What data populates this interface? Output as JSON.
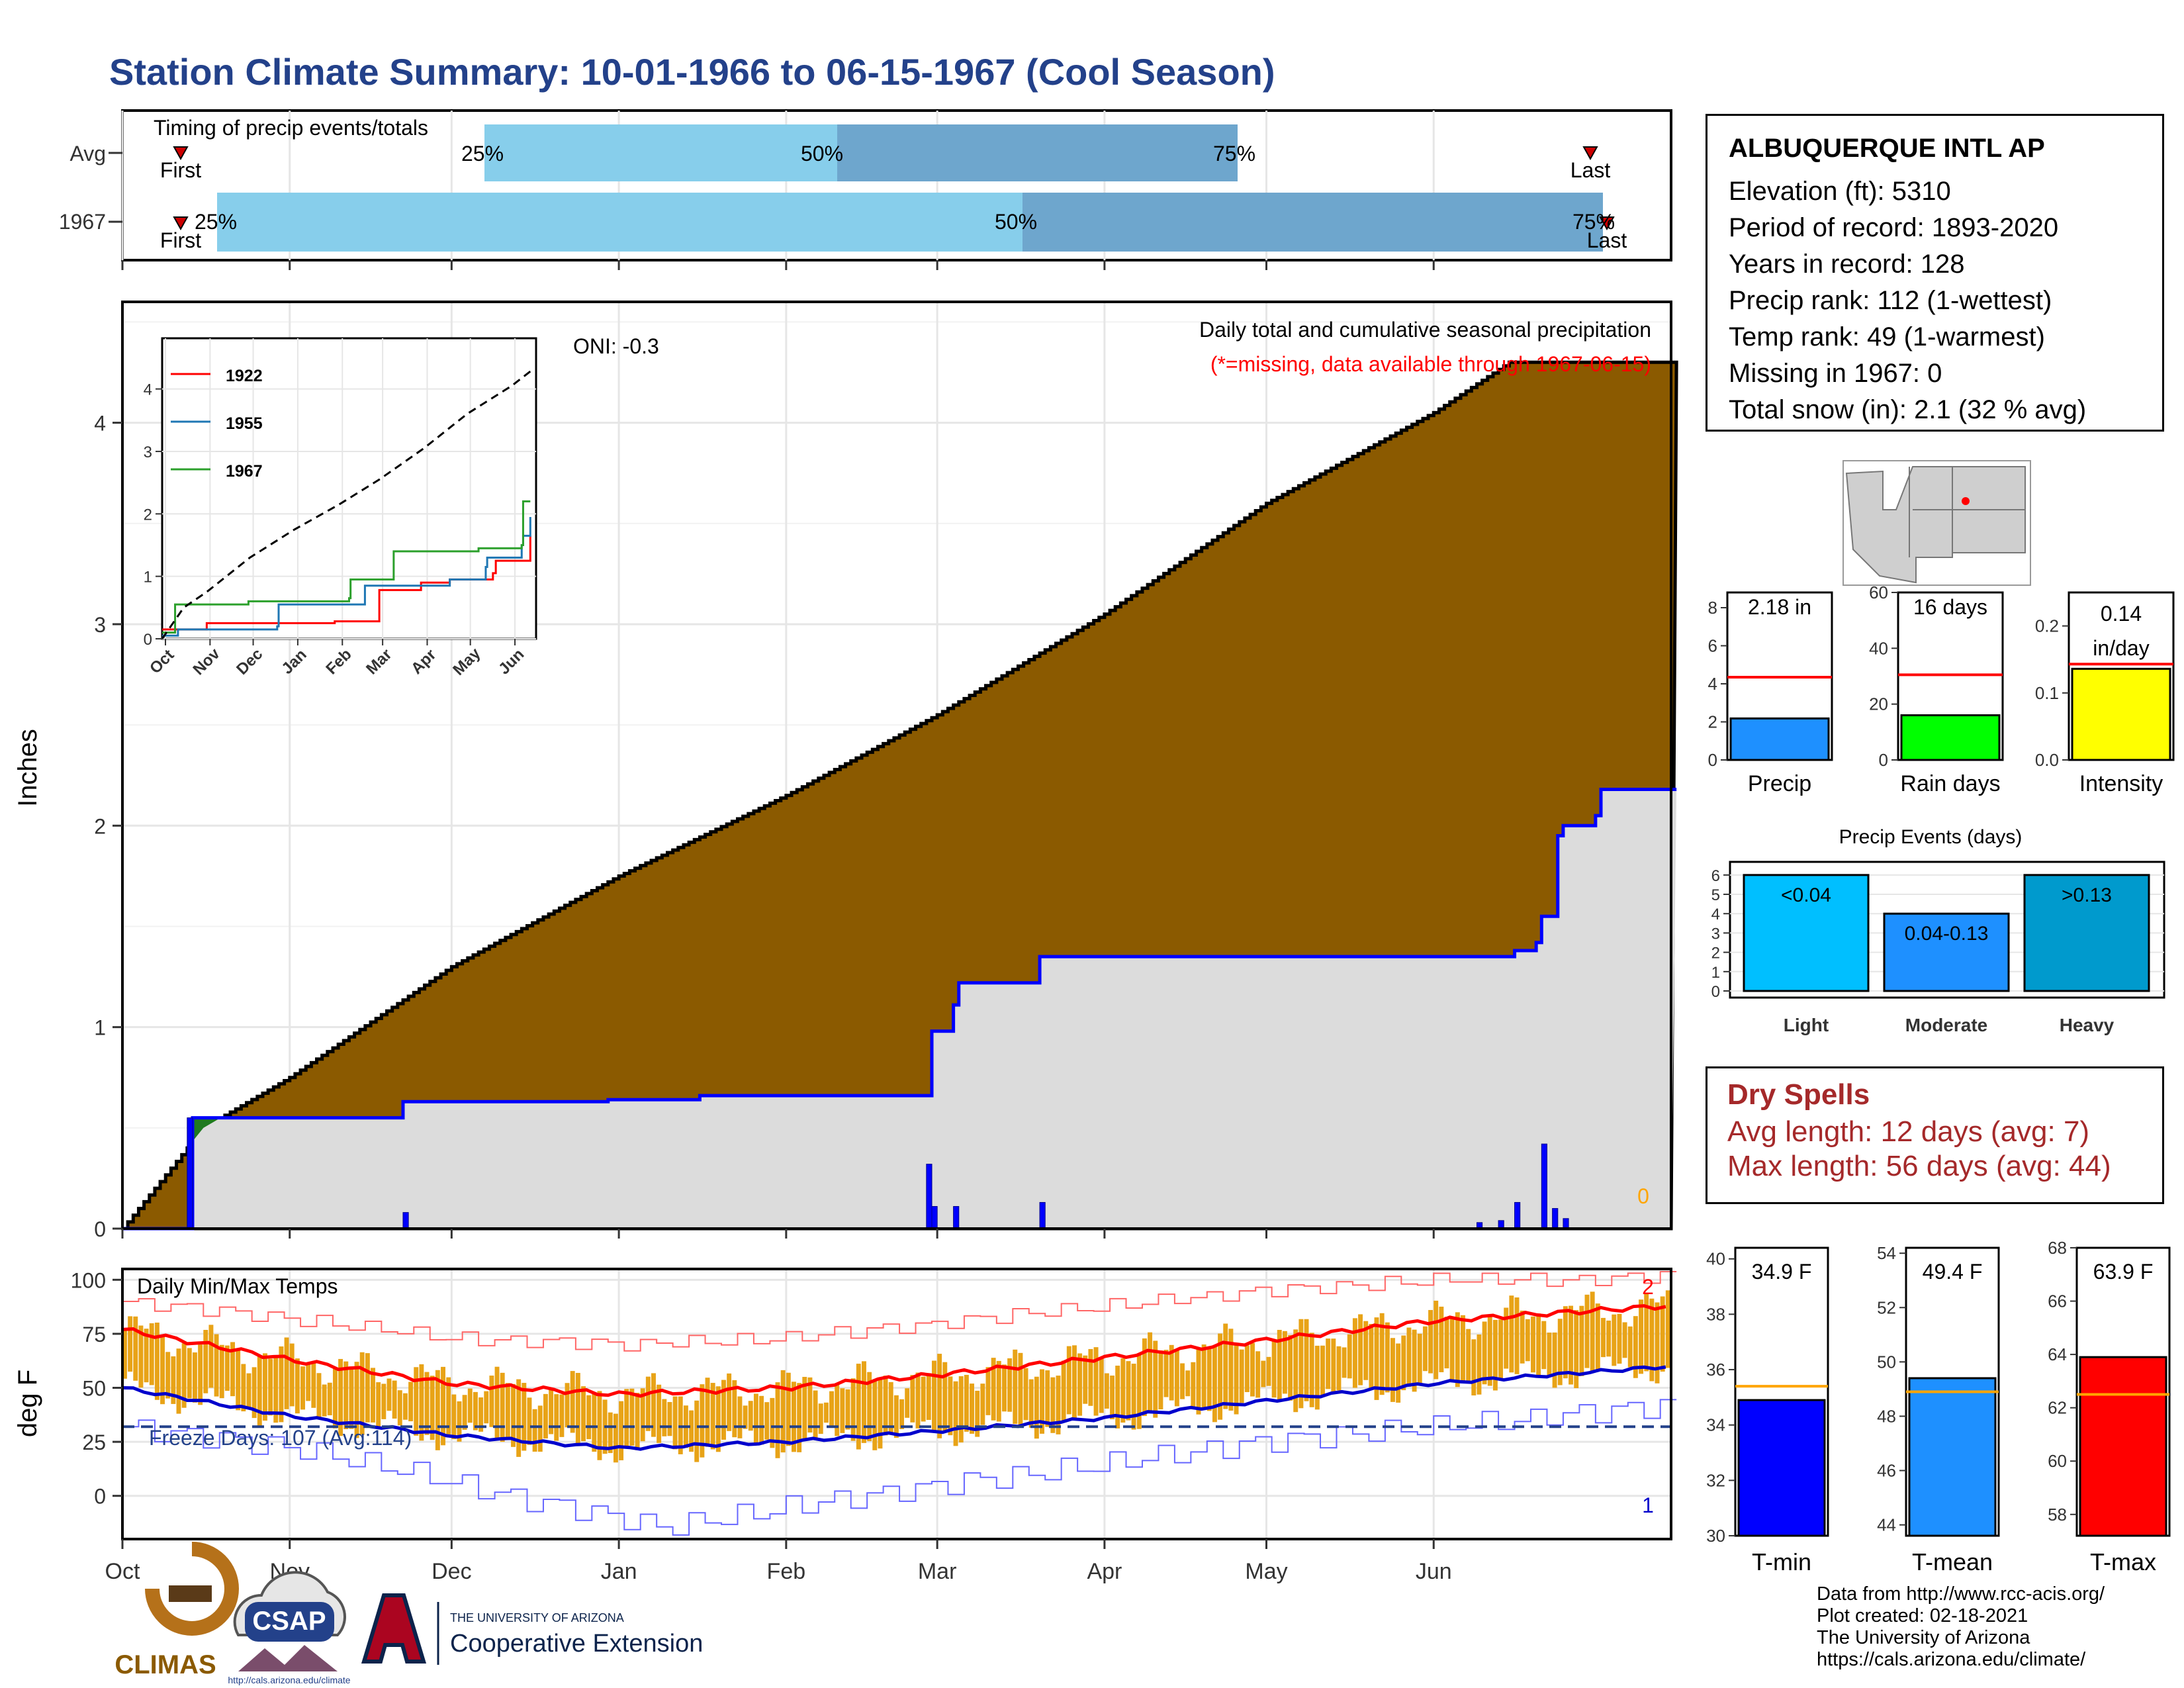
{
  "title": "Station Climate Summary: 10-01-1966 to 06-15-1967 (Cool Season)",
  "station": {
    "name": "ALBUQUERQUE INTL AP",
    "lines": [
      "Elevation (ft): 5310",
      "Period of record: 1893-2020",
      "Years in record: 128",
      "Precip rank: 112 (1-wettest)",
      "Temp rank: 49 (1-warmest)",
      "Missing in 1967: 0",
      "Total snow (in): 2.1 (32 % avg)"
    ]
  },
  "timing": {
    "label": "Timing of precip events/totals",
    "rows": [
      "Avg",
      "1967"
    ],
    "first_label": "First",
    "last_label": "Last",
    "pct_labels": [
      "25%",
      "50%",
      "75%"
    ]
  },
  "main_chart": {
    "ylabel": "Inches",
    "oni": "ONI: -0.3",
    "caption": "Daily total and cumulative seasonal precipitation",
    "caption_note": "(*=missing, data available through 1967-06-15)",
    "count_label": "0",
    "yticks": [
      "0",
      "1",
      "2",
      "3",
      "4"
    ],
    "months": [
      "Oct",
      "Nov",
      "Dec",
      "Jan",
      "Feb",
      "Mar",
      "Apr",
      "May",
      "Jun"
    ]
  },
  "inset": {
    "legend": [
      "1922",
      "1955",
      "1967"
    ],
    "yticks": [
      "0",
      "1",
      "2",
      "3",
      "4"
    ],
    "months": [
      "Oct",
      "Nov",
      "Dec",
      "Jan",
      "Feb",
      "Mar",
      "Apr",
      "May",
      "Jun"
    ]
  },
  "temp_chart": {
    "ylabel": "deg F",
    "title": "Daily Min/Max Temps",
    "freeze": "Freeze Days: 107 (Avg:114)",
    "record_high_count": "2",
    "record_low_count": "1",
    "yticks": [
      "0",
      "25",
      "50",
      "75",
      "100"
    ]
  },
  "precip_bars": {
    "precip": {
      "label": "Precip",
      "value_text": "2.18 in",
      "value": 2.18,
      "avg": 4.35,
      "yticks": [
        "0",
        "2",
        "4",
        "6",
        "8"
      ],
      "ymax": 8.8
    },
    "raindays": {
      "label": "Rain days",
      "value_text": "16 days",
      "value": 16,
      "avg": 30.5,
      "yticks": [
        "0",
        "20",
        "40",
        "60"
      ],
      "ymax": 60
    },
    "intensity": {
      "label": "Intensity",
      "value_text": "0.14",
      "value_text2": "in/day",
      "value": 0.136,
      "avg": 0.143,
      "yticks": [
        "0.0",
        "0.1",
        "0.2"
      ],
      "ymax": 0.25
    }
  },
  "events": {
    "title": "Precip Events (days)",
    "yticks": [
      "0",
      "1",
      "2",
      "3",
      "4",
      "5",
      "6"
    ],
    "bars": [
      {
        "name": "Light",
        "range": "<0.04",
        "value": 6
      },
      {
        "name": "Moderate",
        "range": "0.04-0.13",
        "value": 4
      },
      {
        "name": "Heavy",
        "range": ">0.13",
        "value": 6
      }
    ]
  },
  "dry_spells": {
    "title": "Dry Spells",
    "avg": "Avg length: 12 days (avg: 7)",
    "max": "Max length: 56 days (avg: 44)"
  },
  "temp_bars": {
    "tmin": {
      "label": "T-min",
      "value_text": "34.9 F",
      "value": 34.9,
      "avg": 35.4,
      "ymin": 30,
      "ymax": 40.4,
      "yticks": [
        "30",
        "32",
        "34",
        "36",
        "38",
        "40"
      ]
    },
    "tmean": {
      "label": "T-mean",
      "value_text": "49.4 F",
      "value": 49.4,
      "avg": 48.9,
      "ymin": 43.6,
      "ymax": 54.2,
      "yticks": [
        "44",
        "46",
        "48",
        "50",
        "52",
        "54"
      ]
    },
    "tmax": {
      "label": "T-max",
      "value_text": "63.9 F",
      "value": 63.9,
      "avg": 62.5,
      "ymin": 57.2,
      "ymax": 68,
      "yticks": [
        "58",
        "60",
        "62",
        "64",
        "66",
        "68"
      ]
    }
  },
  "logos": {
    "climas": "CLIMAS",
    "csap": "CSAP",
    "csap_url": "http://cals.arizona.edu/climate",
    "ua_top": "THE UNIVERSITY OF ARIZONA",
    "ua_bottom": "Cooperative Extension"
  },
  "source": [
    "Data from http://www.rcc-acis.org/",
    "Plot created: 02-18-2021",
    "The University of Arizona",
    "https://cals.arizona.edu/climate/"
  ],
  "colors": {
    "title": "#23418a",
    "avg_cum_fill": "#8b5a00",
    "obs_line": "#0000ff",
    "surplus_fill": "#1f7a1f",
    "daily_bar": "#0000ff",
    "temp_bar": "#e8a317",
    "tmax_avg": "#ff0000",
    "tmin_avg": "#0000cc",
    "timing_light": "#87ceeb",
    "timing_dark": "#6ea6cd",
    "event_light": "#00bfff",
    "event_mod": "#1e90ff",
    "event_heavy": "#009acd"
  },
  "chart_data": [
    {
      "type": "line",
      "title": "Daily total and cumulative seasonal precipitation",
      "ylabel": "Inches",
      "ylim": [
        0,
        4.6
      ],
      "x_months": [
        "Oct",
        "Nov",
        "Dec",
        "Jan",
        "Feb",
        "Mar",
        "Apr",
        "May",
        "Jun"
      ],
      "series": [
        {
          "name": "Average cumulative",
          "x_day": [
            0,
            15,
            31,
            61,
            92,
            123,
            151,
            182,
            212,
            243,
            257
          ],
          "values": [
            0,
            0.5,
            0.75,
            1.3,
            1.75,
            2.15,
            2.55,
            3.05,
            3.6,
            4.05,
            4.3
          ]
        },
        {
          "name": "1967 cumulative",
          "x_day": [
            0,
            12,
            13,
            31,
            51,
            52,
            59,
            90,
            107,
            149,
            150,
            154,
            155,
            169,
            170,
            258,
            262,
            263,
            266,
            267,
            273,
            274,
            287
          ],
          "values": [
            0,
            0,
            0.55,
            0.55,
            0.55,
            0.63,
            0.63,
            0.64,
            0.66,
            0.66,
            0.98,
            1.11,
            1.22,
            1.22,
            1.35,
            1.38,
            1.42,
            1.55,
            1.95,
            2.0,
            2.05,
            2.18,
            2.18
          ]
        }
      ],
      "daily_precip": {
        "x_day": [
          12,
          52,
          149,
          150,
          154,
          170,
          251,
          255,
          258,
          263,
          265,
          267
        ],
        "values": [
          0.55,
          0.08,
          0.32,
          0.11,
          0.11,
          0.13,
          0.03,
          0.04,
          0.13,
          0.42,
          0.1,
          0.05
        ]
      }
    },
    {
      "type": "line",
      "title": "",
      "ylim": [
        0,
        4.6
      ],
      "series": [
        {
          "name": "1922",
          "x_day": [
            0,
            30,
            31,
            120,
            150,
            151,
            180,
            200,
            230,
            232,
            255,
            256
          ],
          "values": [
            0.15,
            0.15,
            0.25,
            0.28,
            0.28,
            0.78,
            0.9,
            0.95,
            1.05,
            1.25,
            1.25,
            1.65
          ]
        },
        {
          "name": "1955",
          "x_day": [
            0,
            10,
            11,
            80,
            81,
            140,
            141,
            200,
            225,
            226,
            250,
            251,
            256
          ],
          "values": [
            0.05,
            0.05,
            0.15,
            0.2,
            0.55,
            0.55,
            0.85,
            0.95,
            1.15,
            1.3,
            1.5,
            1.65,
            1.95
          ]
        },
        {
          "name": "1967",
          "x_day": [
            0,
            8,
            9,
            60,
            130,
            131,
            160,
            161,
            220,
            250,
            251,
            256
          ],
          "values": [
            0.1,
            0.1,
            0.55,
            0.6,
            0.65,
            0.95,
            0.95,
            1.4,
            1.45,
            1.5,
            2.2,
            2.2
          ]
        },
        {
          "name": "Average",
          "x_day": [
            0,
            15,
            31,
            61,
            92,
            123,
            151,
            182,
            212,
            243,
            257
          ],
          "values": [
            0,
            0.5,
            0.75,
            1.3,
            1.75,
            2.15,
            2.55,
            3.05,
            3.6,
            4.05,
            4.3
          ]
        }
      ]
    },
    {
      "type": "line",
      "title": "Daily Min/Max Temps",
      "ylabel": "deg F",
      "ylim": [
        -20,
        105
      ],
      "series": [
        {
          "name": "avg max",
          "x_day": [
            0,
            31,
            61,
            92,
            123,
            151,
            182,
            212,
            243,
            287
          ],
          "values": [
            77,
            63,
            52,
            47,
            50,
            56,
            64,
            72,
            81,
            88
          ]
        },
        {
          "name": "avg min",
          "x_day": [
            0,
            31,
            61,
            92,
            123,
            151,
            182,
            212,
            243,
            287
          ],
          "values": [
            50,
            37,
            28,
            22,
            25,
            30,
            36,
            44,
            52,
            60
          ]
        },
        {
          "name": "record high",
          "x_day": [
            0,
            31,
            61,
            92,
            123,
            151,
            182,
            212,
            243,
            270,
            287
          ],
          "values": [
            90,
            82,
            73,
            70,
            73,
            80,
            88,
            95,
            100,
            100,
            102
          ]
        },
        {
          "name": "record low",
          "x_day": [
            0,
            31,
            55,
            70,
            92,
            100,
            123,
            151,
            182,
            212,
            243,
            287
          ],
          "values": [
            32,
            22,
            10,
            0,
            -10,
            -15,
            -5,
            5,
            15,
            25,
            32,
            42
          ]
        }
      ],
      "freeze_line": 32
    },
    {
      "type": "bar",
      "categories": [
        "Precip",
        "Rain days",
        "Intensity"
      ],
      "values": [
        2.18,
        16,
        0.136
      ],
      "averages": [
        4.35,
        30.5,
        0.143
      ]
    },
    {
      "type": "bar",
      "title": "Precip Events (days)",
      "categories": [
        "Light",
        "Moderate",
        "Heavy"
      ],
      "values": [
        6,
        4,
        6
      ]
    },
    {
      "type": "bar",
      "categories": [
        "T-min",
        "T-mean",
        "T-max"
      ],
      "values": [
        34.9,
        49.4,
        63.9
      ],
      "averages": [
        35.4,
        48.9,
        62.5
      ]
    }
  ]
}
